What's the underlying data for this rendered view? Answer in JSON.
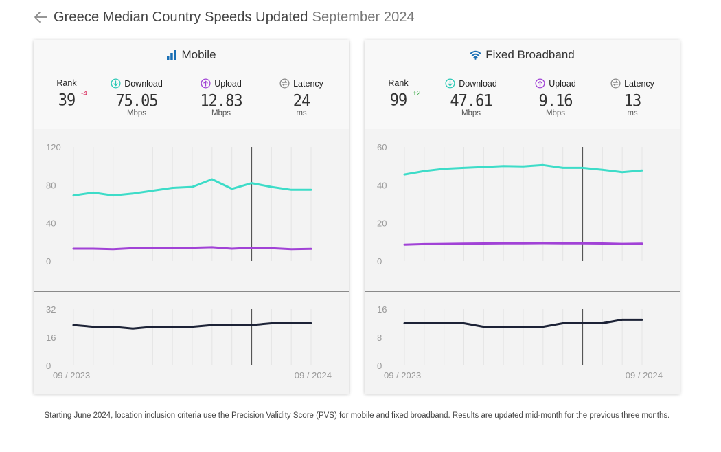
{
  "header": {
    "title": "Greece Median Country Speeds Updated",
    "date": "September 2024"
  },
  "icons": {
    "back": "arrow-left-icon",
    "mobile": "bar-chart-icon",
    "fixed": "wifi-icon",
    "download": "arrow-down-circle-icon",
    "upload": "arrow-up-circle-icon",
    "latency": "latency-icon"
  },
  "colors": {
    "download": "#3ddcc8",
    "upload": "#a142d6",
    "latency": "#1c2236",
    "rank_down": "#d9265a",
    "rank_up": "#2aa336"
  },
  "panels": {
    "mobile": {
      "title": "Mobile",
      "rank_label": "Rank",
      "rank": "39",
      "rank_change": "-4",
      "download_label": "Download",
      "download": "75.05",
      "download_unit": "Mbps",
      "upload_label": "Upload",
      "upload": "12.83",
      "upload_unit": "Mbps",
      "latency_label": "Latency",
      "latency": "24",
      "latency_unit": "ms"
    },
    "fixed": {
      "title": "Fixed Broadband",
      "rank_label": "Rank",
      "rank": "99",
      "rank_change": "+2",
      "download_label": "Download",
      "download": "47.61",
      "download_unit": "Mbps",
      "upload_label": "Upload",
      "upload": "9.16",
      "upload_unit": "Mbps",
      "latency_label": "Latency",
      "latency": "13",
      "latency_unit": "ms"
    }
  },
  "footnote": "Starting June 2024, location inclusion criteria use the Precision Validity Score (PVS) for mobile and fixed broadband. Results are updated mid-month for the previous three months.",
  "chart_data": [
    {
      "type": "line",
      "panel": "mobile",
      "x": [
        "09/2023",
        "10/2023",
        "11/2023",
        "12/2023",
        "01/2024",
        "02/2024",
        "03/2024",
        "04/2024",
        "05/2024",
        "06/2024",
        "07/2024",
        "08/2024",
        "09/2024"
      ],
      "x_tick_labels": [
        "09 / 2023",
        "09 / 2024"
      ],
      "marker_x": "06/2024",
      "speed": {
        "ylim": [
          0,
          120
        ],
        "yticks": [
          "0",
          "40",
          "80",
          "120"
        ],
        "series": [
          {
            "key": "download",
            "values": [
              69,
              72,
              69,
              71,
              74,
              77,
              78,
              86,
              76,
              82,
              78,
              75,
              75
            ]
          },
          {
            "key": "upload",
            "values": [
              13,
              13,
              12.5,
              13.5,
              13.5,
              14,
              14,
              14.5,
              13,
              14,
              13.5,
              12.5,
              12.8
            ]
          }
        ]
      },
      "latency": {
        "ylim": [
          0,
          32
        ],
        "yticks": [
          "0",
          "16",
          "32"
        ],
        "series": [
          {
            "key": "latency",
            "values": [
              23,
              22,
              22,
              21,
              22,
              22,
              22,
              23,
              23,
              23,
              24,
              24,
              24
            ]
          }
        ]
      }
    },
    {
      "type": "line",
      "panel": "fixed",
      "x": [
        "09/2023",
        "10/2023",
        "11/2023",
        "12/2023",
        "01/2024",
        "02/2024",
        "03/2024",
        "04/2024",
        "05/2024",
        "06/2024",
        "07/2024",
        "08/2024",
        "09/2024"
      ],
      "x_tick_labels": [
        "09 / 2023",
        "09 / 2024"
      ],
      "marker_x": "06/2024",
      "speed": {
        "ylim": [
          0,
          60
        ],
        "yticks": [
          "0",
          "20",
          "40",
          "60"
        ],
        "series": [
          {
            "key": "download",
            "values": [
              45.5,
              47.3,
              48.5,
              49,
              49.5,
              50,
              49.8,
              50.5,
              49,
              49,
              48,
              46.7,
              47.6
            ]
          },
          {
            "key": "upload",
            "values": [
              8.6,
              8.9,
              9,
              9.1,
              9.2,
              9.3,
              9.3,
              9.4,
              9.3,
              9.3,
              9.2,
              9,
              9.16
            ]
          }
        ]
      },
      "latency": {
        "ylim": [
          0,
          16
        ],
        "yticks": [
          "0",
          "8",
          "16"
        ],
        "series": [
          {
            "key": "latency",
            "values": [
              12,
              12,
              12,
              12,
              11,
              11,
              11,
              11,
              12,
              12,
              12,
              13,
              13
            ]
          }
        ]
      }
    }
  ]
}
